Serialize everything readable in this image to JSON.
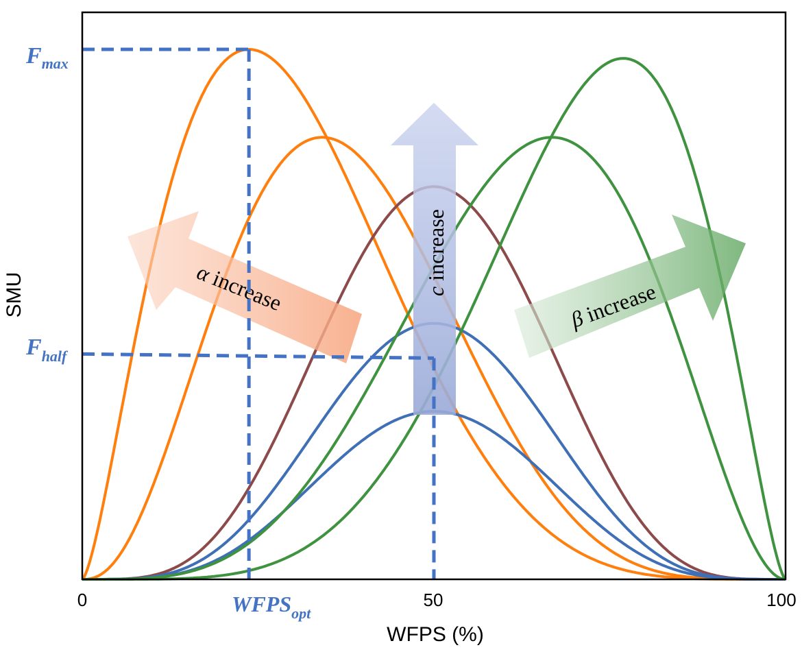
{
  "chart_data": {
    "type": "line",
    "xlabel": "WFPS (%)",
    "ylabel": "SMU",
    "xlim": [
      0,
      100
    ],
    "ylim": [
      0,
      1.07
    ],
    "x_ticks": [
      "0",
      "50",
      "100"
    ],
    "grid": false,
    "legend": "none",
    "series": [
      {
        "color": "#ff7f0e",
        "model": "beta",
        "peak_x": 23.7,
        "peak_y": 1.0,
        "alpha": 1.5,
        "beta": 4.83
      },
      {
        "color": "#ff7f0e",
        "model": "beta",
        "peak_x": 34.1,
        "peak_y": 0.834,
        "alpha": 2.5,
        "beta": 4.83
      },
      {
        "color": "#8c4a4a",
        "model": "beta",
        "peak_x": 50,
        "peak_y": 0.741,
        "alpha": 4.5,
        "beta": 4.5
      },
      {
        "color": "#3f6fb5",
        "model": "beta",
        "peak_x": 50,
        "peak_y": 0.483,
        "alpha": 4.5,
        "beta": 4.5
      },
      {
        "color": "#3f6fb5",
        "model": "beta",
        "peak_x": 50,
        "peak_y": 0.317,
        "alpha": 4.5,
        "beta": 4.5
      },
      {
        "color": "#3f923f",
        "model": "beta",
        "peak_x": 66.8,
        "peak_y": 0.834,
        "alpha": 4.02,
        "beta": 2.0
      },
      {
        "color": "#3f923f",
        "model": "beta",
        "peak_x": 77,
        "peak_y": 0.983,
        "alpha": 5.0,
        "beta": 1.5
      }
    ],
    "reference_lines": {
      "color": "#4472c4",
      "f_max": {
        "label_main": "F",
        "label_sub": "max",
        "y": 1.0,
        "x": 23.7
      },
      "f_half": {
        "label_main": "F",
        "label_sub": "half",
        "y": 0.42,
        "x": 50
      },
      "wfps_opt": {
        "label_main": "WFPS",
        "label_sub": "opt",
        "x": 23.7
      }
    },
    "annotations": {
      "alpha": {
        "symbol": "α",
        "text": " increase",
        "color": "#f4a582"
      },
      "c": {
        "symbol": "c",
        "text": " increase",
        "color": "#8fa3d6"
      },
      "beta": {
        "symbol": "β",
        "text": " increase",
        "color": "#6aa96a"
      }
    }
  }
}
